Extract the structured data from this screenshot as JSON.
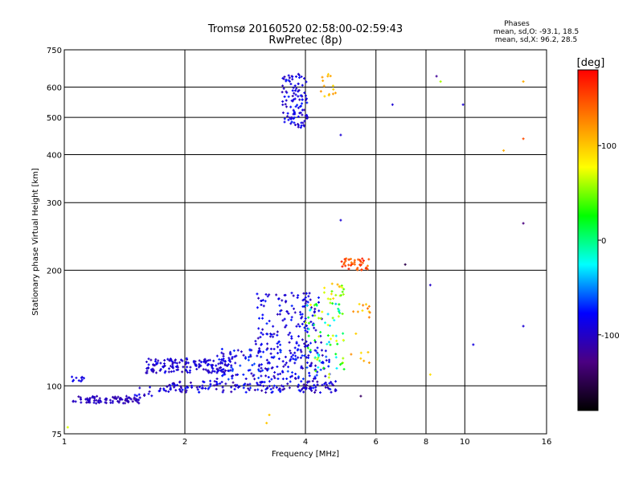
{
  "chart_data": {
    "type": "scatter",
    "title": "Tromsø 20160520 02:58:00-02:59:43",
    "subtitle": "RwPretec (8p)",
    "xlabel": "Frequency [MHz]",
    "ylabel": "Stationary phase Virtual Height [km]",
    "xscale": "log",
    "yscale": "log",
    "xlim": [
      1,
      16
    ],
    "ylim": [
      75,
      750
    ],
    "x_ticks": [
      1,
      2,
      4,
      6,
      8,
      10,
      16
    ],
    "y_ticks": [
      75,
      100,
      200,
      300,
      400,
      500,
      600,
      750
    ],
    "grid": true,
    "legend": {
      "title": "Phases",
      "lines": [
        "mean, sd,O: -93.1, 18.5",
        "mean, sd,X:  96.2, 28.5"
      ]
    },
    "colorbar": {
      "label": "[deg]",
      "range": [
        -180,
        180
      ],
      "ticks": [
        100,
        0,
        -100
      ],
      "colors": [
        "#000000",
        "#4b0082",
        "#0000ff",
        "#00ffff",
        "#00ff00",
        "#ffff00",
        "#ff8000",
        "#ff0000"
      ]
    },
    "clusters": [
      {
        "f": [
          1.03,
          1.12
        ],
        "h": [
          102,
          106
        ],
        "phase": [
          -95,
          -80
        ],
        "n": 10
      },
      {
        "f": [
          1.05,
          1.55
        ],
        "h": [
          90,
          94
        ],
        "phase": [
          -115,
          -95
        ],
        "n": 90
      },
      {
        "f": [
          1.5,
          1.85
        ],
        "h": [
          94,
          100
        ],
        "phase": [
          -110,
          -80
        ],
        "n": 20
      },
      {
        "f": [
          1.6,
          2.6
        ],
        "h": [
          108,
          118
        ],
        "phase": [
          -110,
          -80
        ],
        "n": 150
      },
      {
        "f": [
          1.8,
          4.9
        ],
        "h": [
          96,
          103
        ],
        "phase": [
          -115,
          -70
        ],
        "n": 160
      },
      {
        "f": [
          2.4,
          4.6
        ],
        "h": [
          104,
          125
        ],
        "phase": [
          -110,
          -60
        ],
        "n": 200
      },
      {
        "f": [
          3.0,
          4.4
        ],
        "h": [
          125,
          175
        ],
        "phase": [
          -110,
          -70
        ],
        "n": 140
      },
      {
        "f": [
          4.0,
          5.0
        ],
        "h": [
          105,
          165
        ],
        "phase": [
          -40,
          80
        ],
        "n": 70
      },
      {
        "f": [
          4.4,
          5.0
        ],
        "h": [
          160,
          185
        ],
        "phase": [
          40,
          110
        ],
        "n": 20
      },
      {
        "f": [
          4.9,
          5.8
        ],
        "h": [
          200,
          215
        ],
        "phase": [
          130,
          170
        ],
        "n": 40
      },
      {
        "f": [
          5.2,
          5.8
        ],
        "h": [
          110,
          165
        ],
        "phase": [
          90,
          140
        ],
        "n": 18
      },
      {
        "f": [
          3.5,
          4.05
        ],
        "h": [
          470,
          650
        ],
        "phase": [
          -110,
          -70
        ],
        "n": 110
      },
      {
        "f": [
          4.3,
          4.8
        ],
        "h": [
          560,
          650
        ],
        "phase": [
          90,
          120
        ],
        "n": 14
      }
    ],
    "points": [
      {
        "f": 6.6,
        "h": 540,
        "phase": -95
      },
      {
        "f": 8.5,
        "h": 640,
        "phase": -120
      },
      {
        "f": 8.7,
        "h": 620,
        "phase": 60
      },
      {
        "f": 9.9,
        "h": 540,
        "phase": -95
      },
      {
        "f": 14.0,
        "h": 440,
        "phase": 150
      },
      {
        "f": 12.5,
        "h": 410,
        "phase": 110
      },
      {
        "f": 14.0,
        "h": 620,
        "phase": 110
      },
      {
        "f": 4.9,
        "h": 450,
        "phase": -95
      },
      {
        "f": 4.9,
        "h": 270,
        "phase": -95
      },
      {
        "f": 14.0,
        "h": 265,
        "phase": -130
      },
      {
        "f": 7.1,
        "h": 207,
        "phase": -150
      },
      {
        "f": 8.2,
        "h": 183,
        "phase": -100
      },
      {
        "f": 10.5,
        "h": 128,
        "phase": -90
      },
      {
        "f": 14.0,
        "h": 143,
        "phase": -95
      },
      {
        "f": 8.2,
        "h": 107,
        "phase": 90
      },
      {
        "f": 3.2,
        "h": 80,
        "phase": 100
      },
      {
        "f": 3.25,
        "h": 84,
        "phase": 100
      },
      {
        "f": 1.02,
        "h": 78,
        "phase": 70
      },
      {
        "f": 5.5,
        "h": 94,
        "phase": -140
      },
      {
        "f": 4.75,
        "h": 97,
        "phase": -100
      }
    ]
  }
}
